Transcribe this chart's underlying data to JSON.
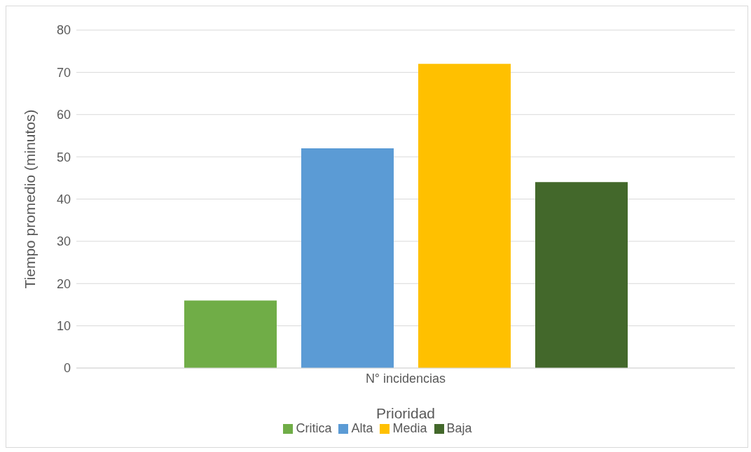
{
  "chart_data": {
    "type": "bar",
    "xlabel": "Prioridad",
    "ylabel": "Tiempo promedio (minutos)",
    "categories": [
      "N° incidencias"
    ],
    "series": [
      {
        "name": "Critica",
        "color": "#70ad47",
        "values": [
          16
        ]
      },
      {
        "name": "Alta",
        "color": "#5b9bd5",
        "values": [
          52
        ]
      },
      {
        "name": "Media",
        "color": "#ffc000",
        "values": [
          72
        ]
      },
      {
        "name": "Baja",
        "color": "#43682b",
        "values": [
          44
        ]
      }
    ],
    "ylim": [
      0,
      80
    ],
    "yticks": [
      0,
      10,
      20,
      30,
      40,
      50,
      60,
      70,
      80
    ],
    "grid": "y",
    "legend": "bottom"
  }
}
